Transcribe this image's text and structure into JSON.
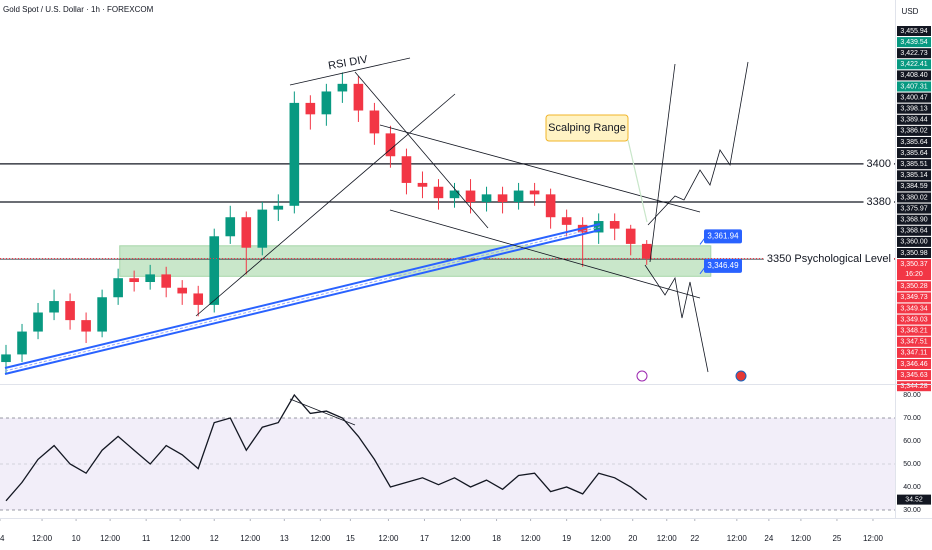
{
  "chart_data": {
    "type": "candlestick",
    "title": "Gold Spot / U.S. Dollar · 1h · FOREXCOM",
    "currency": "USD",
    "open": [
      3296,
      3300,
      3312,
      3322,
      3328,
      3318,
      3312,
      3330,
      3340,
      3338,
      3342,
      3335,
      3332,
      3326,
      3362,
      3372,
      3356,
      3376,
      3378,
      3432,
      3426,
      3438,
      3442,
      3428,
      3416,
      3404,
      3390,
      3388,
      3382,
      3386,
      3380,
      3384,
      3380,
      3386,
      3384,
      3372,
      3368,
      3364,
      3370,
      3366,
      3358
    ],
    "high": [
      3305,
      3316,
      3327,
      3334,
      3332,
      3322,
      3334,
      3345,
      3344,
      3347,
      3346,
      3339,
      3336,
      3366,
      3378,
      3375,
      3380,
      3384,
      3438,
      3436,
      3442,
      3448,
      3446,
      3432,
      3420,
      3408,
      3396,
      3392,
      3390,
      3392,
      3388,
      3388,
      3390,
      3390,
      3387,
      3376,
      3372,
      3374,
      3374,
      3368,
      3360
    ],
    "low": [
      3290,
      3296,
      3308,
      3318,
      3313,
      3306,
      3309,
      3326,
      3333,
      3334,
      3330,
      3326,
      3320,
      3322,
      3358,
      3342,
      3352,
      3370,
      3374,
      3418,
      3420,
      3432,
      3422,
      3410,
      3398,
      3384,
      3382,
      3376,
      3377,
      3374,
      3375,
      3374,
      3376,
      3378,
      3366,
      3362,
      3346,
      3358,
      3360,
      3352,
      3347
    ],
    "close": [
      3300,
      3312,
      3322,
      3328,
      3318,
      3312,
      3330,
      3340,
      3338,
      3342,
      3335,
      3332,
      3326,
      3362,
      3372,
      3356,
      3376,
      3378,
      3432,
      3426,
      3438,
      3442,
      3428,
      3416,
      3404,
      3390,
      3388,
      3382,
      3386,
      3380,
      3384,
      3380,
      3386,
      3384,
      3372,
      3368,
      3364,
      3370,
      3366,
      3358,
      3350.37
    ],
    "up_color": "#089981",
    "down_color": "#f23645",
    "xlim": [
      -0.375,
      55.5
    ],
    "xticks": [
      {
        "value": -0.375,
        "label": "4"
      },
      {
        "value": 2.25,
        "label": "12:00"
      },
      {
        "value": 4.375,
        "label": "10"
      },
      {
        "value": 6.5,
        "label": "12:00"
      },
      {
        "value": 8.75,
        "label": "11"
      },
      {
        "value": 10.875,
        "label": "12:00"
      },
      {
        "value": 13,
        "label": "12"
      },
      {
        "value": 15.25,
        "label": "12:00"
      },
      {
        "value": 17.375,
        "label": "13"
      },
      {
        "value": 19.625,
        "label": "12:00"
      },
      {
        "value": 21.5,
        "label": "15"
      },
      {
        "value": 23.875,
        "label": "12:00"
      },
      {
        "value": 26.125,
        "label": "17"
      },
      {
        "value": 28.375,
        "label": "12:00"
      },
      {
        "value": 30.625,
        "label": "18"
      },
      {
        "value": 32.75,
        "label": "12:00"
      },
      {
        "value": 35,
        "label": "19"
      },
      {
        "value": 37.125,
        "label": "12:00"
      },
      {
        "value": 39.125,
        "label": "20"
      },
      {
        "value": 41.25,
        "label": "12:00"
      },
      {
        "value": 43,
        "label": "22"
      },
      {
        "value": 45.625,
        "label": "12:00"
      },
      {
        "value": 47.625,
        "label": "24"
      },
      {
        "value": 49.625,
        "label": "12:00"
      },
      {
        "value": 51.875,
        "label": "25"
      },
      {
        "value": 54.125,
        "label": "12:00"
      }
    ],
    "ylim": [
      3285,
      3486
    ],
    "axis_labels": [
      "3,455.94",
      "3,439.54",
      "3,422.73",
      "3,422.41",
      "3,408.40",
      "3,407.31",
      "3,400.47",
      "3,398.13",
      "3,389.44",
      "3,386.02",
      "3,385.64",
      "3,385.64",
      "3,385.51",
      "3,385.14",
      "3,384.59",
      "3,380.02",
      "3,375.97",
      "3,368.90",
      "3,368.64",
      "3,360.00",
      "3,350.98",
      "3,350.28",
      "3,349.73",
      "3,349.34",
      "3,349.03",
      "3,348.21",
      "3,347.51",
      "3,347.11",
      "3,346.46",
      "3,345.63",
      "3,344.28"
    ],
    "last_price": {
      "value": 3350.37,
      "label": "3,350.37",
      "countdown": "16:20"
    },
    "levels": [
      {
        "value": 3400,
        "label": "3400"
      },
      {
        "value": 3380,
        "label": "3380"
      },
      {
        "value": 3350,
        "label": "3350 Psychological Level"
      }
    ],
    "zone": [
      3341,
      3357
    ],
    "price_tags": [
      {
        "value": 3361.94,
        "label": "3,361.94"
      },
      {
        "value": 3346.49,
        "label": "3,346.49"
      }
    ],
    "annotations": {
      "divergence": "RSI DIV",
      "range": "Scalping Range"
    },
    "rsi": {
      "values": [
        34,
        42,
        52,
        58,
        50,
        46,
        56,
        62,
        56,
        50,
        58,
        54,
        48,
        68,
        70,
        56,
        66,
        68,
        80,
        72,
        73,
        70,
        62,
        52,
        40,
        42,
        44,
        41,
        44,
        40,
        43,
        39,
        45,
        46,
        38,
        40,
        37,
        46,
        44,
        40,
        34.52
      ],
      "last_label": "34.52",
      "color": "#131722",
      "ylim": [
        27.4,
        83.9
      ],
      "yticks": [
        {
          "value": 80,
          "label": "80.00"
        },
        {
          "value": 70,
          "label": "70.00"
        },
        {
          "value": 60,
          "label": "60.00"
        },
        {
          "value": 50,
          "label": "50.00"
        },
        {
          "value": 40,
          "label": "40.00"
        },
        {
          "value": 30,
          "label": "30.00"
        }
      ]
    }
  }
}
